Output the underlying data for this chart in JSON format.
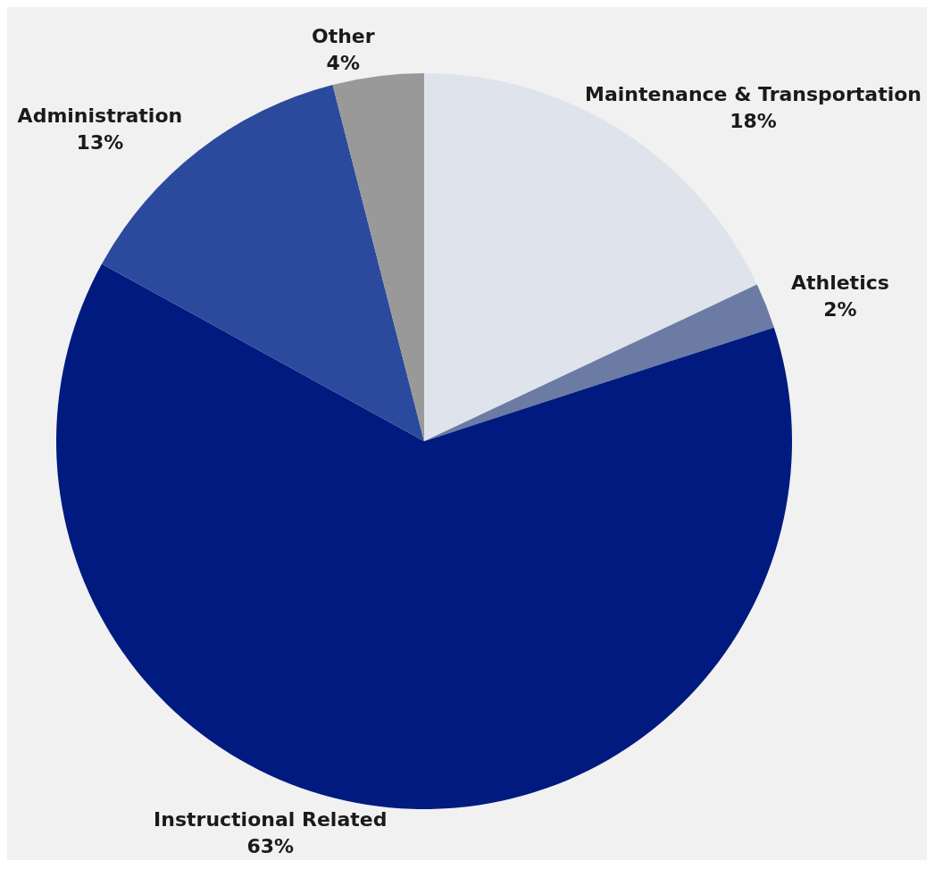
{
  "chart_data": {
    "type": "pie",
    "categories": [
      "Maintenance & Transportation",
      "Athletics",
      "Instructional Related",
      "Administration",
      "Other"
    ],
    "values": [
      18,
      2,
      63,
      13,
      4
    ],
    "value_labels": [
      "18%",
      "2%",
      "63%",
      "13%",
      "4%"
    ],
    "colors": [
      "#dfe3ec",
      "#6b7ba3",
      "#001a80",
      "#2b4a9e",
      "#999999"
    ]
  }
}
